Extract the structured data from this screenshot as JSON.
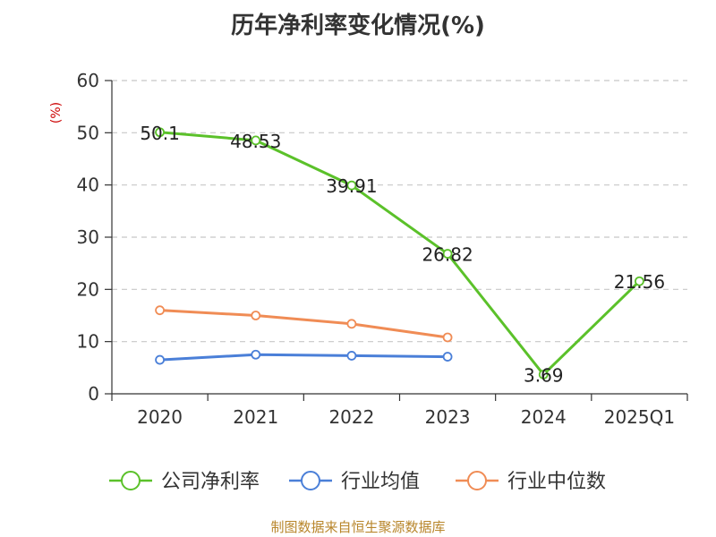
{
  "chart_data": {
    "type": "line",
    "title": "历年净利率变化情况(%)",
    "ylabel": "(%)",
    "categories": [
      "2020",
      "2021",
      "2022",
      "2023",
      "2024",
      "2025Q1"
    ],
    "ylim": [
      0,
      60
    ],
    "yticks": [
      0,
      10,
      20,
      30,
      40,
      50,
      60
    ],
    "grid": true,
    "legend_position": "bottom",
    "series": [
      {
        "name": "公司净利率",
        "color": "#5bc12a",
        "values": [
          50.1,
          48.53,
          39.91,
          26.82,
          3.69,
          21.56
        ],
        "labels": [
          "50.1",
          "48.53",
          "39.91",
          "26.82",
          "3.69",
          "21.56"
        ]
      },
      {
        "name": "行业均值",
        "color": "#4a7fd8",
        "values": [
          6.5,
          7.5,
          7.3,
          7.1,
          null,
          null
        ]
      },
      {
        "name": "行业中位数",
        "color": "#f08c55",
        "values": [
          16.0,
          15.0,
          13.4,
          10.8,
          null,
          null
        ]
      }
    ]
  },
  "source_text": "制图数据来自恒生聚源数据库"
}
